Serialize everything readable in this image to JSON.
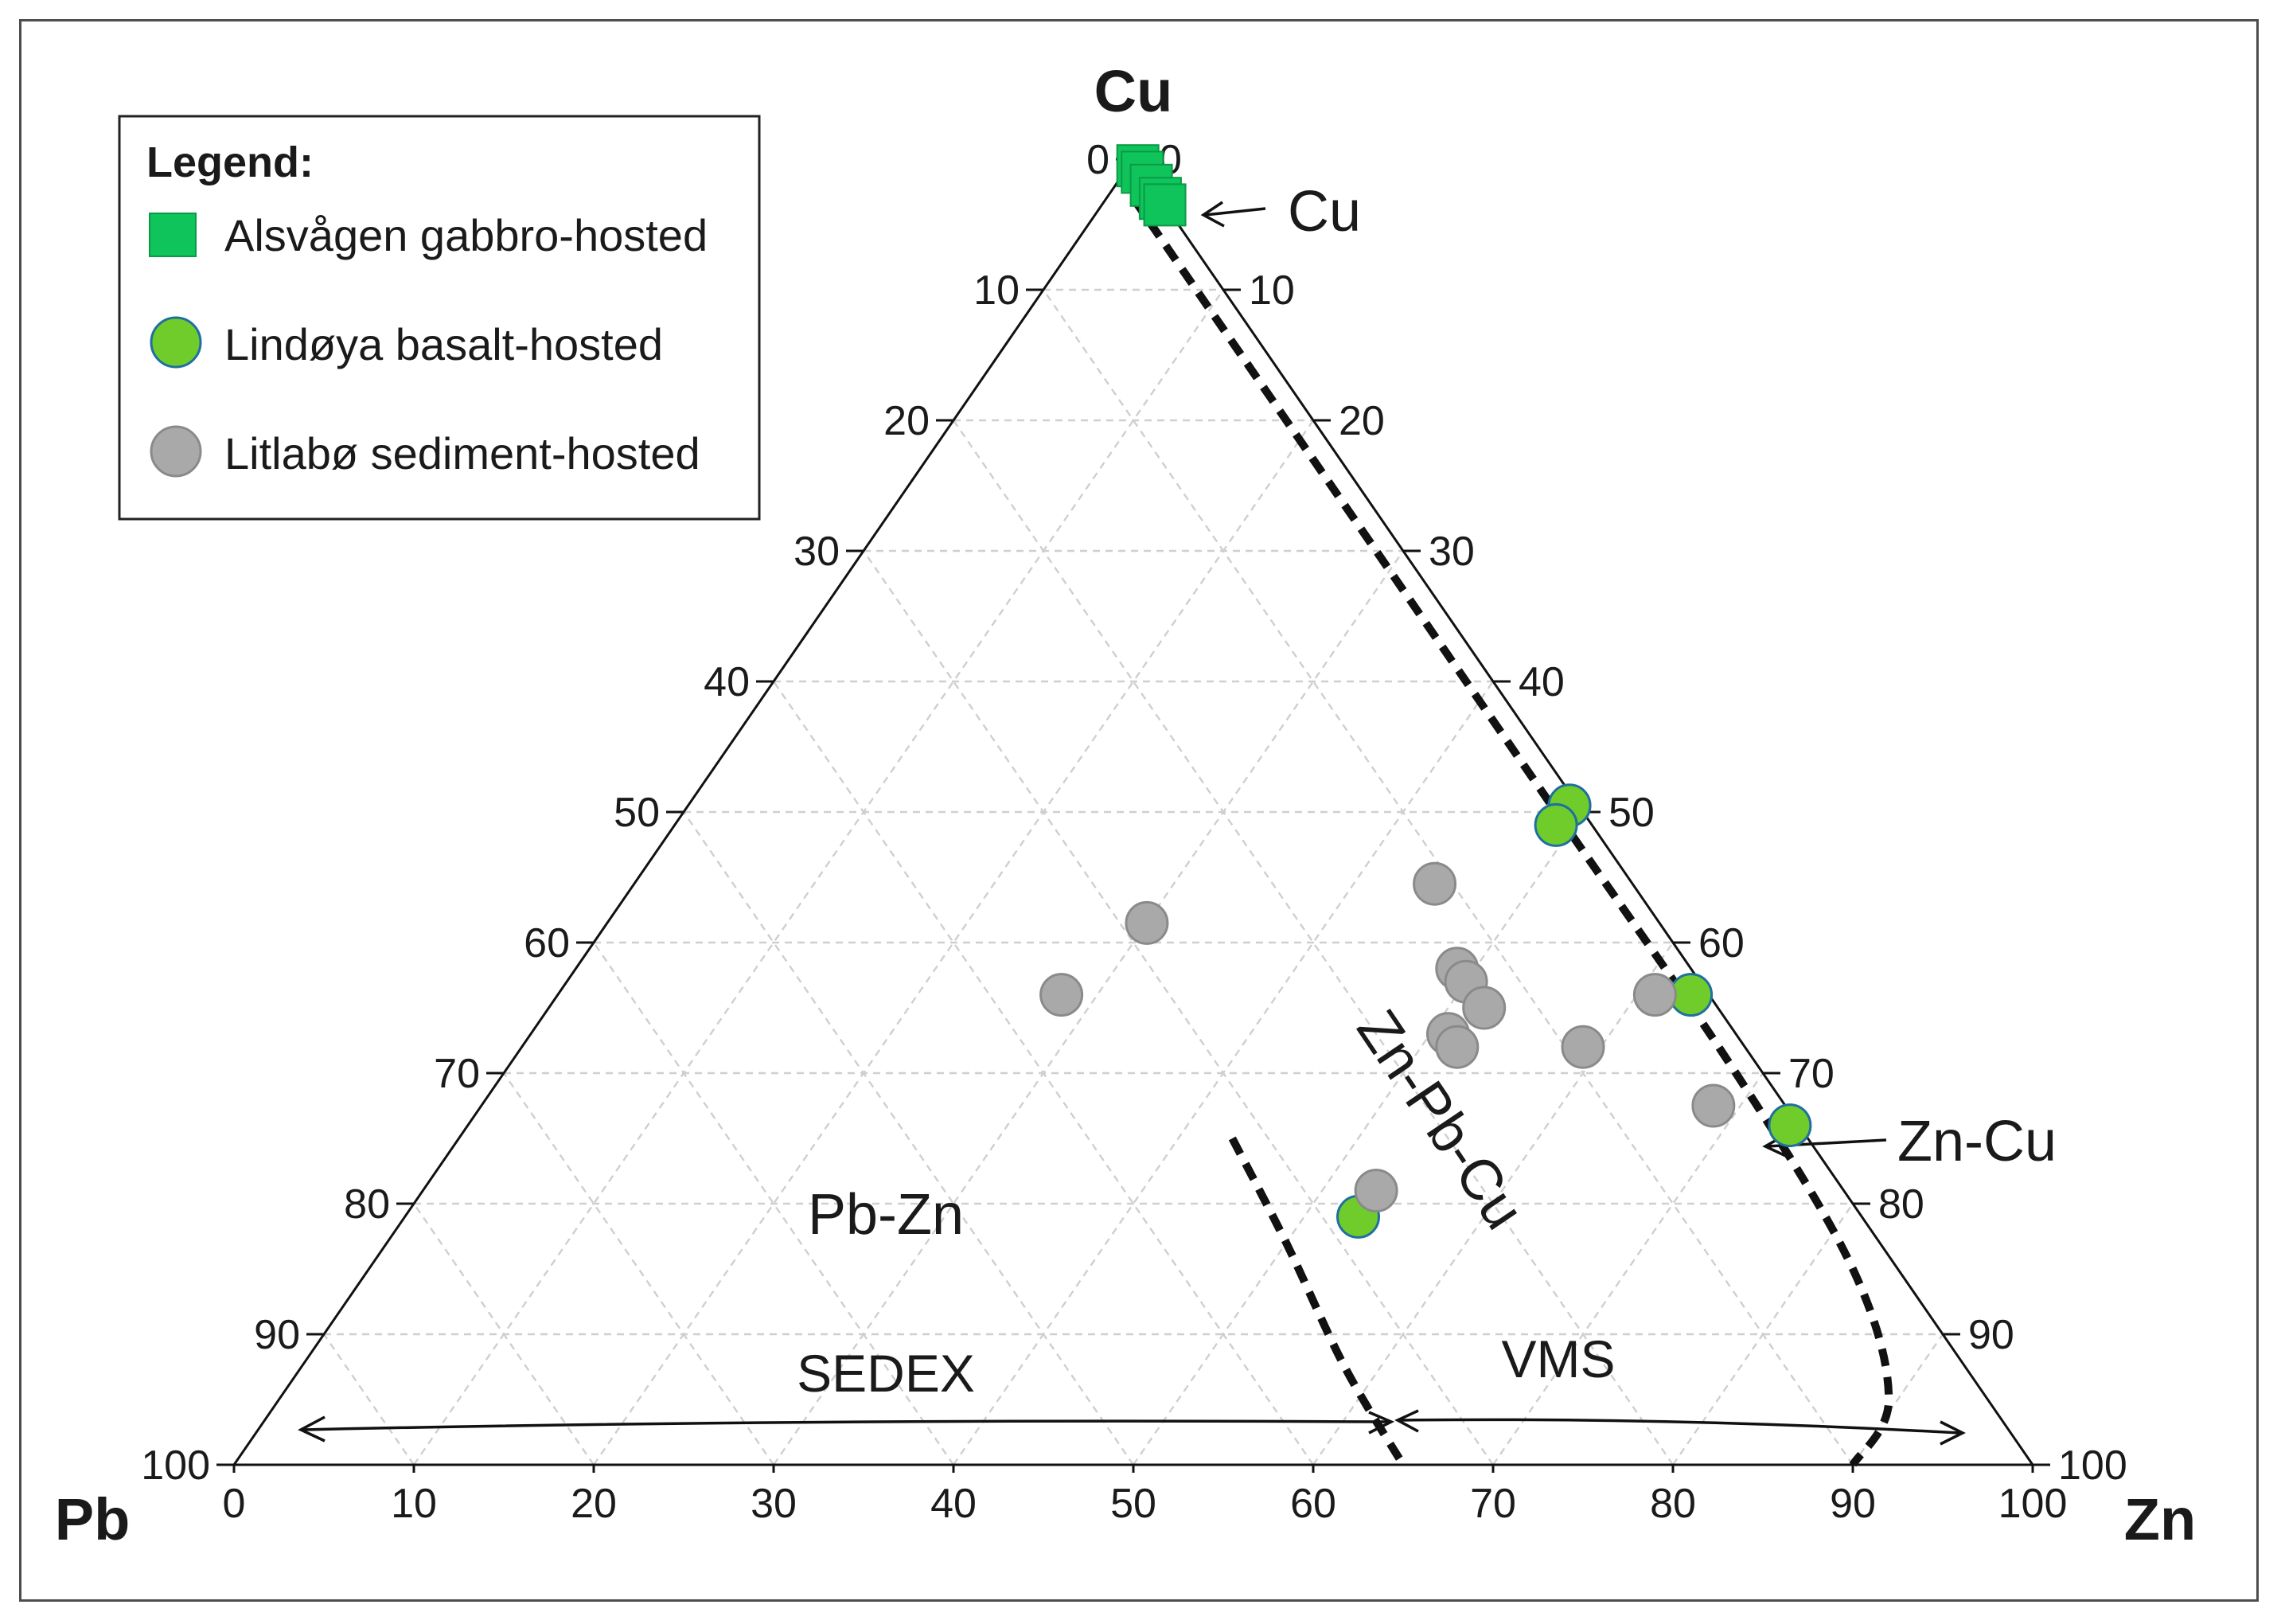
{
  "chart_data": {
    "type": "scatter",
    "subtype": "ternary",
    "axes": {
      "top": "Cu",
      "left": "Pb",
      "right": "Zn"
    },
    "components_order": [
      "Pb",
      "Zn",
      "Cu"
    ],
    "range": [
      0,
      100
    ],
    "ticks": [
      0,
      10,
      20,
      30,
      40,
      50,
      60,
      70,
      80,
      90,
      100
    ],
    "grid": true,
    "legend": {
      "title": "Legend:",
      "position": "top-left",
      "entries": [
        {
          "key": "alsvagen",
          "label": "Alsvågen gabbro-hosted",
          "marker": "square",
          "color": "#10c45c",
          "stroke": "#0a9a45"
        },
        {
          "key": "lindoya",
          "label": "Lindøya basalt-hosted",
          "marker": "circle",
          "color": "#6fcc2a",
          "stroke": "#1f6fa0"
        },
        {
          "key": "litlabo",
          "label": "Litlabø sediment-hosted",
          "marker": "circle",
          "color": "#a9a9a9",
          "stroke": "#8a8a8a"
        }
      ]
    },
    "series": [
      {
        "name": "Alsvågen gabbro-hosted",
        "key": "alsvagen",
        "points": [
          {
            "Pb": 0.0,
            "Zn": 0.5,
            "Cu": 99.5
          },
          {
            "Pb": 0.0,
            "Zn": 1.0,
            "Cu": 99.0
          },
          {
            "Pb": 0.0,
            "Zn": 2.0,
            "Cu": 98.0
          },
          {
            "Pb": 0.0,
            "Zn": 3.0,
            "Cu": 97.0
          },
          {
            "Pb": 0.0,
            "Zn": 3.5,
            "Cu": 96.5
          }
        ]
      },
      {
        "name": "Lindøya basalt-hosted",
        "key": "lindoya",
        "points": [
          {
            "Pb": 0.5,
            "Zn": 49.0,
            "Cu": 50.5
          },
          {
            "Pb": 2.0,
            "Zn": 49.0,
            "Cu": 49.0
          },
          {
            "Pb": 1.0,
            "Zn": 63.0,
            "Cu": 36.0
          },
          {
            "Pb": 0.5,
            "Zn": 73.5,
            "Cu": 26.0
          },
          {
            "Pb": 28.0,
            "Zn": 53.0,
            "Cu": 19.0
          }
        ]
      },
      {
        "name": "Litlabø sediment-hosted",
        "key": "litlabo",
        "points": [
          {
            "Pb": 28.5,
            "Zn": 30.0,
            "Cu": 41.5
          },
          {
            "Pb": 11.0,
            "Zn": 44.5,
            "Cu": 44.5
          },
          {
            "Pb": 16.0,
            "Zn": 51.0,
            "Cu": 33.0
          },
          {
            "Pb": 26.0,
            "Zn": 53.0,
            "Cu": 21.0
          },
          {
            "Pb": 13.0,
            "Zn": 49.0,
            "Cu": 38.0
          },
          {
            "Pb": 13.0,
            "Zn": 50.0,
            "Cu": 37.0
          },
          {
            "Pb": 13.0,
            "Zn": 52.0,
            "Cu": 35.0
          },
          {
            "Pb": 16.0,
            "Zn": 52.0,
            "Cu": 32.0
          },
          {
            "Pb": 9.0,
            "Zn": 59.0,
            "Cu": 32.0
          },
          {
            "Pb": 3.0,
            "Zn": 61.0,
            "Cu": 36.0
          },
          {
            "Pb": 4.0,
            "Zn": 68.5,
            "Cu": 27.5
          },
          {
            "Pb": 36.0,
            "Zn": 28.0,
            "Cu": 36.0
          }
        ]
      }
    ],
    "boundaries": [
      {
        "name": "VMS / Zn-Cu boundary",
        "points": [
          {
            "Pb": 1.5,
            "Zn": 1.5,
            "Cu": 97.0
          },
          {
            "Pb": 1.5,
            "Zn": 28.5,
            "Cu": 70.0
          },
          {
            "Pb": 1.5,
            "Zn": 48.5,
            "Cu": 50.0
          },
          {
            "Pb": 1.5,
            "Zn": 68.5,
            "Cu": 30.0
          },
          {
            "Pb": 2.5,
            "Zn": 82.5,
            "Cu": 15.0
          },
          {
            "Pb": 5.5,
            "Zn": 89.5,
            "Cu": 5.0
          },
          {
            "Pb": 10.0,
            "Zn": 90.0,
            "Cu": 0.0
          }
        ]
      },
      {
        "name": "SEDEX / VMS boundary",
        "points": [
          {
            "Pb": 32.0,
            "Zn": 43.0,
            "Cu": 25.0
          },
          {
            "Pb": 33.0,
            "Zn": 50.0,
            "Cu": 17.0
          },
          {
            "Pb": 34.5,
            "Zn": 58.0,
            "Cu": 7.5
          },
          {
            "Pb": 35.0,
            "Zn": 65.0,
            "Cu": 0.0
          }
        ]
      }
    ],
    "annotations": {
      "cu_arrow": "Cu",
      "zncu_arrow": "Zn-Cu",
      "pbzn": "Pb-Zn",
      "znpbcu": "Zn-Pb-Cu",
      "sedex": "SEDEX",
      "vms": "VMS"
    }
  }
}
